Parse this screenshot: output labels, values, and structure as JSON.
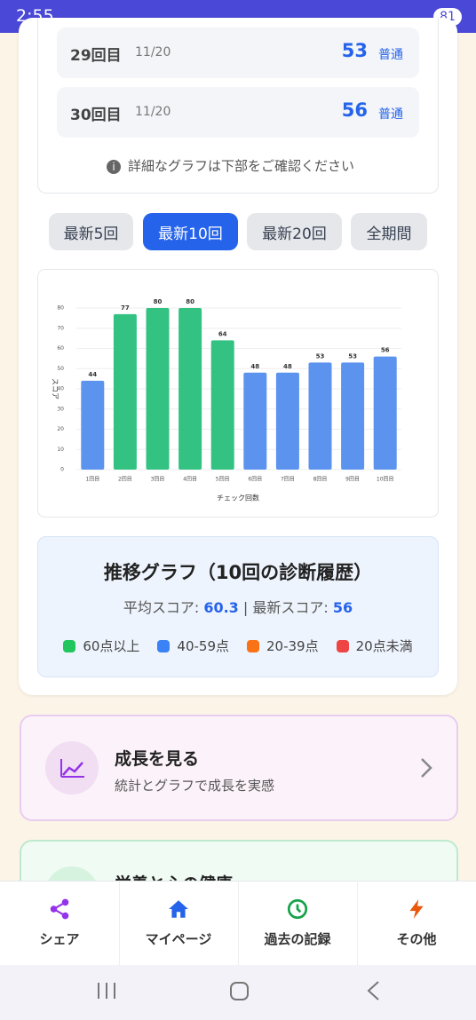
{
  "status": {
    "time": "2:55",
    "battery": "81"
  },
  "history": [
    {
      "round": "29回目",
      "date": "11/20",
      "score": "53",
      "level": "普通"
    },
    {
      "round": "30回目",
      "date": "11/20",
      "score": "56",
      "level": "普通"
    }
  ],
  "note": "詳細なグラフは下部をご確認ください",
  "tabs": [
    "最新5回",
    "最新10回",
    "最新20回",
    "全期間"
  ],
  "chart_data": {
    "type": "bar",
    "categories": [
      "1回目",
      "2回目",
      "3回目",
      "4回目",
      "5回目",
      "6回目",
      "7回目",
      "8回目",
      "9回目",
      "10回目"
    ],
    "values": [
      44,
      77,
      80,
      80,
      64,
      48,
      48,
      53,
      53,
      56
    ],
    "colors": [
      "#5b93ef",
      "#34c283",
      "#34c283",
      "#34c283",
      "#34c283",
      "#5b93ef",
      "#5b93ef",
      "#5b93ef",
      "#5b93ef",
      "#5b93ef"
    ],
    "ylim": [
      0,
      80
    ],
    "yticks": [
      0,
      10,
      20,
      30,
      40,
      50,
      60,
      70,
      80
    ],
    "grid": true,
    "x_label": "チェック回数",
    "y_label": "スコア"
  },
  "summary": {
    "title": "推移グラフ（10回の診断履歴）",
    "avg_label": "平均スコア:",
    "avg": "60.3",
    "separator": "|",
    "latest_label": "最新スコア:",
    "latest": "56",
    "legend": [
      {
        "label": "60点以上",
        "color": "#22c55e"
      },
      {
        "label": "40-59点",
        "color": "#3b82f6"
      },
      {
        "label": "20-39点",
        "color": "#f97316"
      },
      {
        "label": "20点未満",
        "color": "#ef4444"
      }
    ]
  },
  "cards": [
    {
      "title": "成長を見る",
      "subtitle": "統計とグラフで成長を実感"
    },
    {
      "title": "栄養と心の健康"
    }
  ],
  "nav": [
    "シェア",
    "マイページ",
    "過去の記録",
    "その他"
  ]
}
